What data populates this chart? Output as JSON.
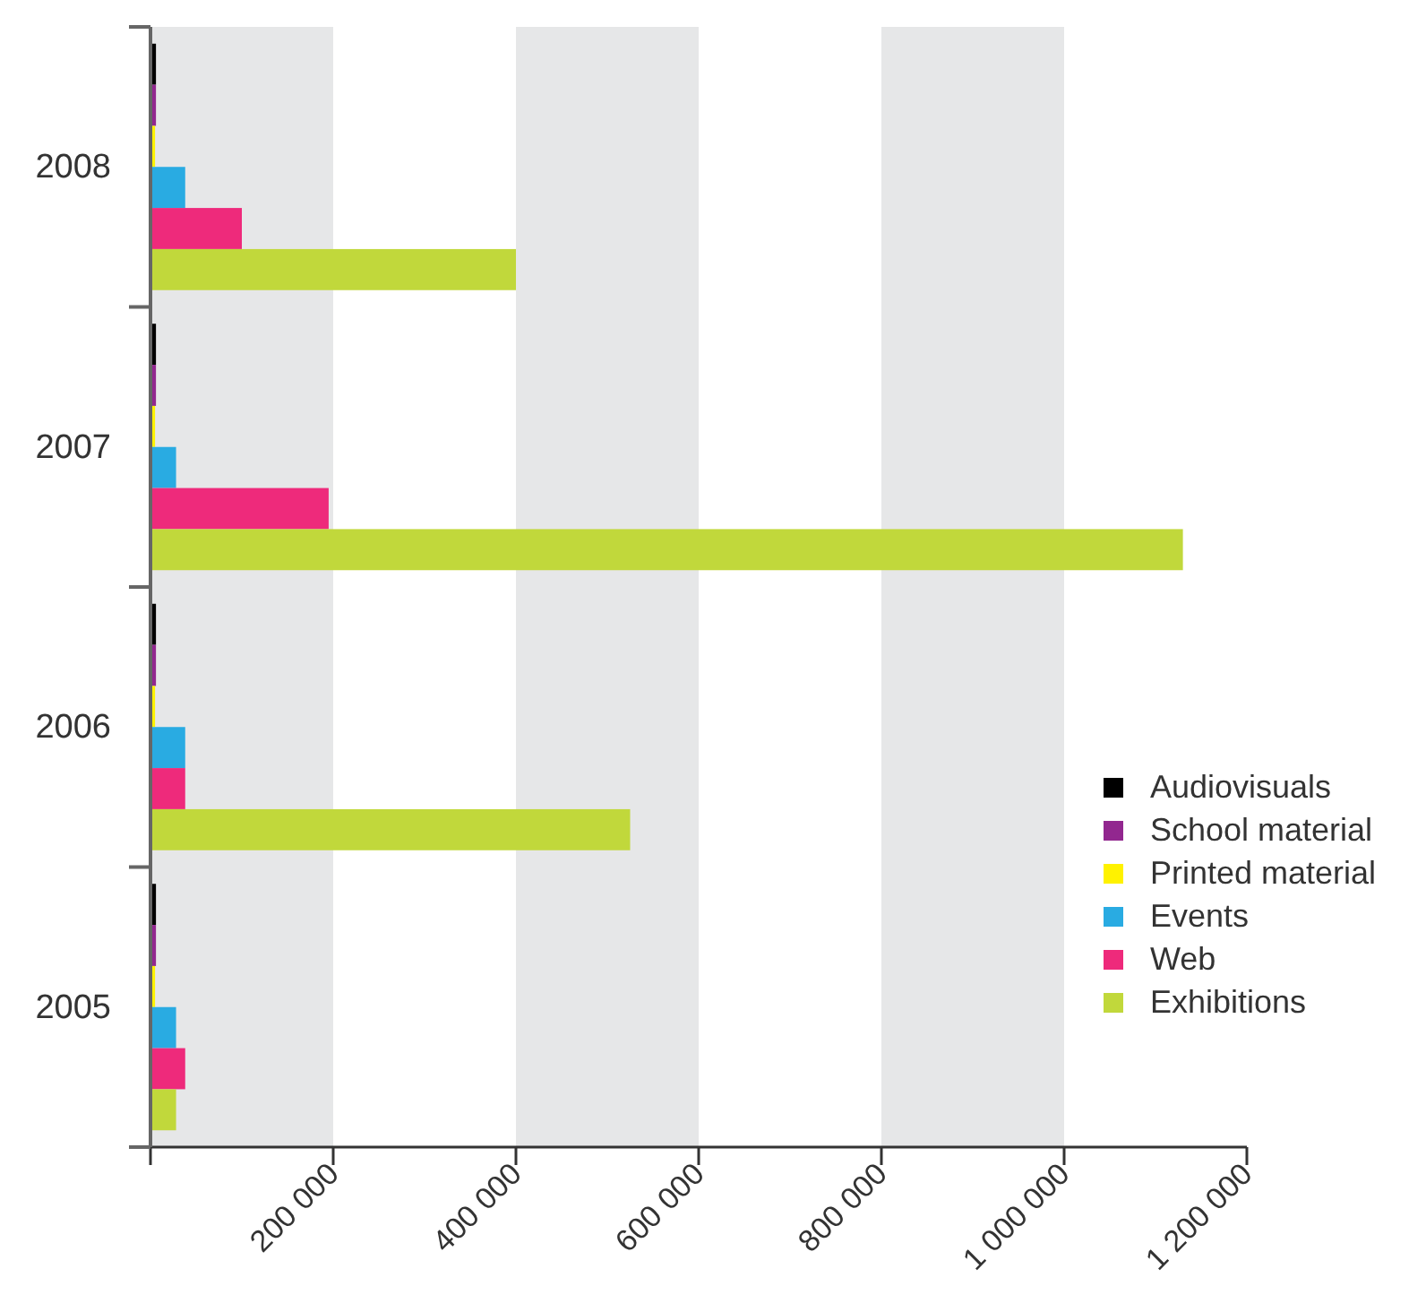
{
  "chart_data": {
    "type": "bar",
    "orientation": "horizontal",
    "categories": [
      "2008",
      "2007",
      "2006",
      "2005"
    ],
    "series": [
      {
        "name": "Audiovisuals",
        "color": "#000000",
        "values": [
          6000,
          6000,
          6000,
          6000
        ]
      },
      {
        "name": "School material",
        "color": "#92278f",
        "values": [
          6000,
          6000,
          6000,
          6000
        ]
      },
      {
        "name": "Printed material",
        "color": "#fff200",
        "values": [
          5000,
          5000,
          5000,
          5000
        ]
      },
      {
        "name": "Events",
        "color": "#29abe2",
        "values": [
          38000,
          28000,
          38000,
          28000
        ]
      },
      {
        "name": "Web",
        "color": "#ee2a7b",
        "values": [
          100000,
          195000,
          38000,
          38000
        ]
      },
      {
        "name": "Exhibitions",
        "color": "#c1d83b",
        "values": [
          400000,
          1130000,
          525000,
          28000
        ]
      }
    ],
    "xlim": [
      0,
      1200000
    ],
    "xticks": [
      {
        "value": 0,
        "label": null
      },
      {
        "value": 200000,
        "label": "200 000"
      },
      {
        "value": 400000,
        "label": "400 000"
      },
      {
        "value": 600000,
        "label": "600 000"
      },
      {
        "value": 800000,
        "label": "800 000"
      },
      {
        "value": 1000000,
        "label": "1 000 000"
      },
      {
        "value": 1200000,
        "label": "1 200 000"
      }
    ],
    "bands": [
      {
        "axis": "x",
        "from": 0,
        "to": 200000,
        "color": "#e6e7e8"
      },
      {
        "axis": "x",
        "from": 400000,
        "to": 600000,
        "color": "#e6e7e8"
      },
      {
        "axis": "x",
        "from": 800000,
        "to": 1000000,
        "color": "#e6e7e8"
      }
    ],
    "legend": "right"
  }
}
